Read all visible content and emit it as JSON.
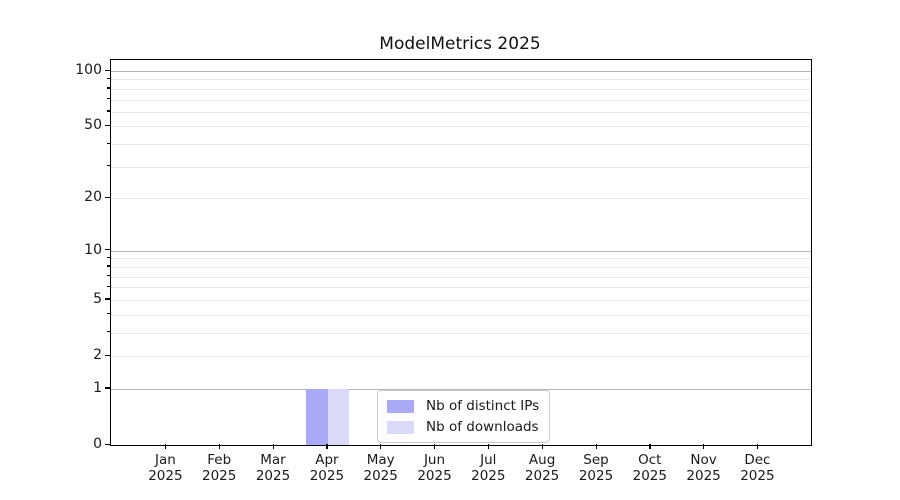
{
  "title": "ModelMetrics 2025",
  "chart_data": {
    "type": "bar",
    "title": "ModelMetrics 2025",
    "categories": [
      "Jan",
      "Feb",
      "Mar",
      "Apr",
      "May",
      "Jun",
      "Jul",
      "Aug",
      "Sep",
      "Oct",
      "Nov",
      "Dec"
    ],
    "year_label": "2025",
    "series": [
      {
        "name": "Nb of distinct IPs",
        "color": "#a9a9f5",
        "values": [
          0,
          0,
          0,
          1,
          0,
          0,
          0,
          0,
          0,
          0,
          0,
          0
        ]
      },
      {
        "name": "Nb of downloads",
        "color": "#d9d9f8",
        "values": [
          0,
          0,
          0,
          1,
          0,
          0,
          0,
          0,
          0,
          0,
          0,
          0
        ]
      }
    ],
    "y_axis": {
      "scale": "log-like (log10(1+v))",
      "tick_labels": [
        "0",
        "1",
        "2",
        "5",
        "10",
        "20",
        "50",
        "100"
      ],
      "tick_values": [
        0,
        1,
        2,
        5,
        10,
        20,
        50,
        100
      ],
      "major_grid_values": [
        1,
        10,
        100
      ],
      "minor_grid_values": [
        2,
        3,
        4,
        5,
        6,
        7,
        8,
        9,
        20,
        30,
        40,
        50,
        60,
        70,
        80,
        90
      ],
      "ylim": [
        0,
        114
      ],
      "grid": "on"
    },
    "x_axis": {
      "label": "",
      "tick_count": 12
    },
    "legend": {
      "position": "lower center",
      "entries": [
        "Nb of distinct IPs",
        "Nb of downloads"
      ]
    },
    "xlabel": "",
    "ylabel": ""
  },
  "colors": {
    "background": "#ffffff",
    "bar_distinct_ips": "#a9a9f5",
    "bar_downloads": "#d9d9f8",
    "major_gridline": "#b5b5b5",
    "minor_gridline": "#eaeaea",
    "axis_spine": "#000000",
    "text": "#1a1a1a",
    "legend_border": "#cccccc"
  }
}
